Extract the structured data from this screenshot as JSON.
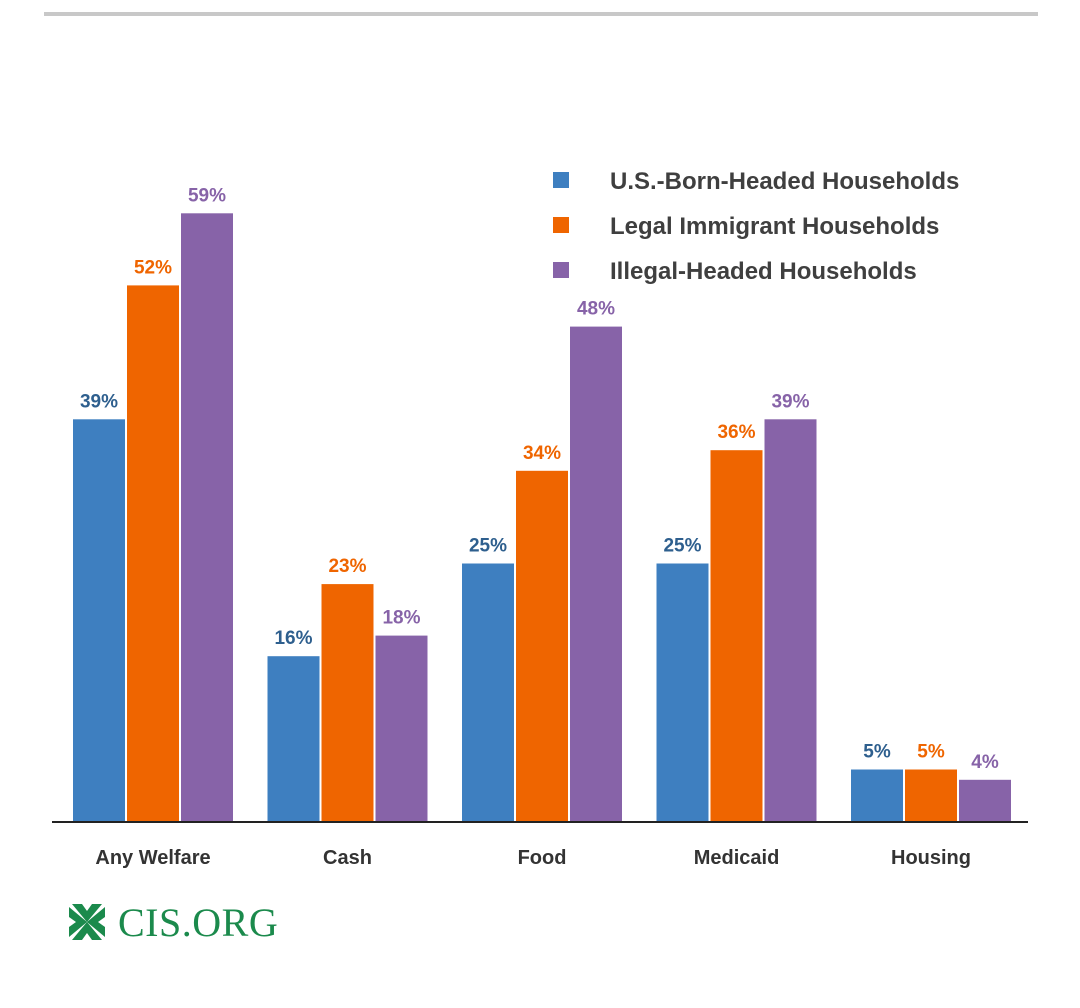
{
  "chart_data": {
    "type": "bar",
    "title": "",
    "xlabel": "",
    "ylabel": "",
    "ylim": [
      0,
      65
    ],
    "grid": false,
    "legend_position": "top-right",
    "categories": [
      "Any Welfare",
      "Cash",
      "Food",
      "Medicaid",
      "Housing"
    ],
    "series": [
      {
        "name": "U.S.-Born-Headed Households",
        "color": "#3e7fc0",
        "label_color": "#2e5f8e",
        "values": [
          39,
          16,
          25,
          25,
          5
        ],
        "labels": [
          "39%",
          "16%",
          "25%",
          "25%",
          "5%"
        ]
      },
      {
        "name": "Legal Immigrant Households",
        "color": "#ef6500",
        "label_color": "#ef6500",
        "values": [
          52,
          23,
          34,
          36,
          5
        ],
        "labels": [
          "52%",
          "23%",
          "34%",
          "36%",
          "5%"
        ]
      },
      {
        "name": "Illegal-Headed Households",
        "color": "#8763a8",
        "label_color": "#8763a8",
        "values": [
          59,
          18,
          48,
          39,
          4
        ],
        "labels": [
          "59%",
          "18%",
          "48%",
          "39%",
          "4%"
        ]
      }
    ]
  },
  "logo": {
    "text": "CIS.ORG",
    "color": "#1b8a4c"
  }
}
